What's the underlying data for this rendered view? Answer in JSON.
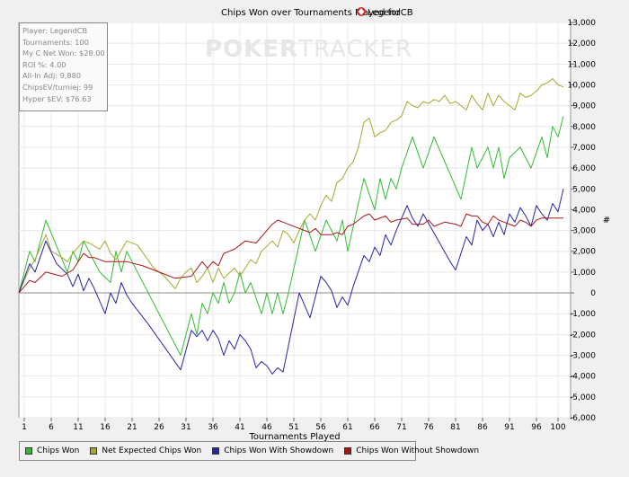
{
  "chart_data": {
    "type": "line",
    "title": "Chips Won over Tournaments Played for",
    "player_name": "LegendCB",
    "xlabel": "Tournaments Played",
    "ylabel": "#",
    "xlim": [
      0,
      100
    ],
    "ylim": [
      -6000,
      13000
    ],
    "x_ticks": [
      1,
      6,
      11,
      16,
      21,
      26,
      31,
      36,
      41,
      46,
      51,
      56,
      61,
      66,
      71,
      76,
      81,
      86,
      91,
      96,
      100
    ],
    "y_ticks": [
      -6000,
      -5000,
      -4000,
      -3000,
      -2000,
      -1000,
      0,
      1000,
      2000,
      3000,
      4000,
      5000,
      6000,
      7000,
      8000,
      9000,
      10000,
      11000,
      12000,
      13000
    ],
    "y_tick_labels": [
      "-6,000",
      "-5,000",
      "-4,000",
      "-3,000",
      "-2,000",
      "-1,000",
      "0",
      "1,000",
      "2,000",
      "3,000",
      "4,000",
      "5,000",
      "6,000",
      "7,000",
      "8,000",
      "9,000",
      "10,000",
      "11,000",
      "12,000",
      "13,000"
    ],
    "series": [
      {
        "name": "Chips Won",
        "color": "#33bb33",
        "points": [
          [
            0,
            0
          ],
          [
            2,
            2000
          ],
          [
            3,
            1500
          ],
          [
            5,
            3500
          ],
          [
            9,
            1000
          ],
          [
            10,
            2000
          ],
          [
            11,
            1500
          ],
          [
            12,
            2500
          ],
          [
            15,
            1000
          ],
          [
            17,
            500
          ],
          [
            18,
            2000
          ],
          [
            19,
            1000
          ],
          [
            20,
            2000
          ],
          [
            30,
            -3000
          ],
          [
            32,
            -1000
          ],
          [
            33,
            -2000
          ],
          [
            34,
            -500
          ],
          [
            35,
            -1000
          ],
          [
            36,
            0
          ],
          [
            37,
            -500
          ],
          [
            38,
            500
          ],
          [
            39,
            -500
          ],
          [
            40,
            0
          ],
          [
            41,
            1000
          ],
          [
            42,
            0
          ],
          [
            43,
            500
          ],
          [
            45,
            -1000
          ],
          [
            46,
            0
          ],
          [
            47,
            -1000
          ],
          [
            48,
            0
          ],
          [
            49,
            -1000
          ],
          [
            50,
            0
          ],
          [
            53,
            3500
          ],
          [
            55,
            2000
          ],
          [
            57,
            3500
          ],
          [
            58,
            3000
          ],
          [
            59,
            2500
          ],
          [
            60,
            3500
          ],
          [
            61,
            2000
          ],
          [
            64,
            5500
          ],
          [
            66,
            4000
          ],
          [
            67,
            5500
          ],
          [
            68,
            4500
          ],
          [
            69,
            5500
          ],
          [
            70,
            5000
          ],
          [
            71,
            6000
          ],
          [
            73,
            7500
          ],
          [
            75,
            6000
          ],
          [
            77,
            7500
          ],
          [
            82,
            4500
          ],
          [
            84,
            7000
          ],
          [
            85,
            6000
          ],
          [
            87,
            7000
          ],
          [
            88,
            6000
          ],
          [
            89,
            7000
          ],
          [
            90,
            5500
          ],
          [
            91,
            6500
          ],
          [
            93,
            7000
          ],
          [
            95,
            6000
          ],
          [
            97,
            7500
          ],
          [
            98,
            6500
          ],
          [
            99,
            8000
          ],
          [
            100,
            7500
          ],
          [
            101,
            8500
          ]
        ]
      },
      {
        "name": "Net Expected Chips Won",
        "color": "#a8a830",
        "points": [
          [
            0,
            0
          ],
          [
            2,
            1200
          ],
          [
            3,
            1600
          ],
          [
            5,
            2800
          ],
          [
            6,
            2000
          ],
          [
            8,
            1700
          ],
          [
            9,
            1500
          ],
          [
            10,
            1900
          ],
          [
            12,
            2500
          ],
          [
            13,
            2400
          ],
          [
            15,
            2100
          ],
          [
            16,
            2500
          ],
          [
            17,
            1900
          ],
          [
            18,
            1600
          ],
          [
            20,
            2500
          ],
          [
            22,
            2300
          ],
          [
            25,
            1200
          ],
          [
            27,
            800
          ],
          [
            29,
            200
          ],
          [
            30,
            700
          ],
          [
            31,
            1000
          ],
          [
            32,
            1200
          ],
          [
            33,
            500
          ],
          [
            34,
            800
          ],
          [
            35,
            1200
          ],
          [
            36,
            500
          ],
          [
            37,
            1200
          ],
          [
            38,
            700
          ],
          [
            40,
            1200
          ],
          [
            41,
            800
          ],
          [
            43,
            1600
          ],
          [
            44,
            1400
          ],
          [
            45,
            2000
          ],
          [
            47,
            2500
          ],
          [
            48,
            2200
          ],
          [
            49,
            3000
          ],
          [
            50,
            2800
          ],
          [
            51,
            2400
          ],
          [
            52,
            3000
          ],
          [
            53,
            3500
          ],
          [
            54,
            3800
          ],
          [
            55,
            3500
          ],
          [
            56,
            4200
          ],
          [
            57,
            4700
          ],
          [
            58,
            4400
          ],
          [
            59,
            5300
          ],
          [
            60,
            5500
          ],
          [
            61,
            6000
          ],
          [
            62,
            6300
          ],
          [
            63,
            7000
          ],
          [
            64,
            8200
          ],
          [
            65,
            8400
          ],
          [
            66,
            7500
          ],
          [
            67,
            7700
          ],
          [
            68,
            7800
          ],
          [
            69,
            8200
          ],
          [
            70,
            8300
          ],
          [
            71,
            8500
          ],
          [
            72,
            9200
          ],
          [
            73,
            9000
          ],
          [
            74,
            8900
          ],
          [
            75,
            9200
          ],
          [
            76,
            9100
          ],
          [
            77,
            9300
          ],
          [
            78,
            9200
          ],
          [
            79,
            9500
          ],
          [
            80,
            9100
          ],
          [
            81,
            9200
          ],
          [
            82,
            9000
          ],
          [
            83,
            8800
          ],
          [
            84,
            9500
          ],
          [
            85,
            9100
          ],
          [
            86,
            8800
          ],
          [
            87,
            9600
          ],
          [
            88,
            9000
          ],
          [
            89,
            9500
          ],
          [
            90,
            9200
          ],
          [
            91,
            9000
          ],
          [
            92,
            8800
          ],
          [
            93,
            9600
          ],
          [
            94,
            9400
          ],
          [
            95,
            9500
          ],
          [
            96,
            9700
          ],
          [
            97,
            10000
          ],
          [
            98,
            10100
          ],
          [
            99,
            10300
          ],
          [
            100,
            10000
          ],
          [
            101,
            9900
          ]
        ]
      },
      {
        "name": "Chips Won With Showdown",
        "color": "#2525a8",
        "points": [
          [
            0,
            0
          ],
          [
            2,
            1400
          ],
          [
            3,
            1000
          ],
          [
            5,
            2500
          ],
          [
            7,
            1400
          ],
          [
            9,
            900
          ],
          [
            10,
            300
          ],
          [
            11,
            900
          ],
          [
            12,
            100
          ],
          [
            13,
            700
          ],
          [
            14,
            200
          ],
          [
            16,
            -1000
          ],
          [
            17,
            0
          ],
          [
            18,
            -500
          ],
          [
            19,
            500
          ],
          [
            20,
            -100
          ],
          [
            21,
            -500
          ],
          [
            24,
            -1500
          ],
          [
            30,
            -3700
          ],
          [
            32,
            -1800
          ],
          [
            33,
            -2100
          ],
          [
            34,
            -1800
          ],
          [
            35,
            -2300
          ],
          [
            36,
            -1800
          ],
          [
            37,
            -2200
          ],
          [
            38,
            -3000
          ],
          [
            39,
            -2300
          ],
          [
            40,
            -2700
          ],
          [
            41,
            -2000
          ],
          [
            42,
            -2300
          ],
          [
            43,
            -2700
          ],
          [
            44,
            -3600
          ],
          [
            45,
            -3300
          ],
          [
            46,
            -3500
          ],
          [
            47,
            -3900
          ],
          [
            48,
            -3600
          ],
          [
            49,
            -3800
          ],
          [
            52,
            0
          ],
          [
            53,
            -600
          ],
          [
            54,
            -1200
          ],
          [
            56,
            800
          ],
          [
            57,
            500
          ],
          [
            58,
            100
          ],
          [
            59,
            -700
          ],
          [
            60,
            -200
          ],
          [
            61,
            -600
          ],
          [
            62,
            300
          ],
          [
            64,
            1800
          ],
          [
            65,
            1500
          ],
          [
            66,
            2200
          ],
          [
            67,
            1800
          ],
          [
            68,
            2800
          ],
          [
            69,
            2300
          ],
          [
            70,
            3000
          ],
          [
            72,
            4200
          ],
          [
            73,
            3600
          ],
          [
            74,
            3200
          ],
          [
            75,
            3800
          ],
          [
            80,
            1500
          ],
          [
            81,
            1100
          ],
          [
            83,
            2700
          ],
          [
            84,
            2300
          ],
          [
            85,
            3500
          ],
          [
            86,
            3000
          ],
          [
            87,
            3300
          ],
          [
            88,
            2700
          ],
          [
            89,
            3400
          ],
          [
            90,
            2800
          ],
          [
            91,
            3800
          ],
          [
            92,
            3400
          ],
          [
            93,
            4100
          ],
          [
            94,
            3700
          ],
          [
            95,
            3200
          ],
          [
            96,
            4200
          ],
          [
            97,
            3800
          ],
          [
            98,
            3500
          ],
          [
            99,
            4300
          ],
          [
            100,
            3900
          ],
          [
            101,
            5000
          ]
        ]
      },
      {
        "name": "Chips Won Without Showdown",
        "color": "#aa1515",
        "points": [
          [
            0,
            0
          ],
          [
            2,
            600
          ],
          [
            3,
            500
          ],
          [
            5,
            1000
          ],
          [
            8,
            800
          ],
          [
            10,
            1100
          ],
          [
            12,
            1900
          ],
          [
            13,
            1700
          ],
          [
            14,
            1700
          ],
          [
            16,
            1500
          ],
          [
            17,
            1500
          ],
          [
            20,
            1500
          ],
          [
            23,
            1300
          ],
          [
            26,
            1000
          ],
          [
            29,
            700
          ],
          [
            32,
            800
          ],
          [
            34,
            1500
          ],
          [
            35,
            1200
          ],
          [
            36,
            1500
          ],
          [
            37,
            1300
          ],
          [
            38,
            1900
          ],
          [
            40,
            2100
          ],
          [
            42,
            2500
          ],
          [
            44,
            2400
          ],
          [
            46,
            3000
          ],
          [
            47,
            3300
          ],
          [
            48,
            3500
          ],
          [
            49,
            3400
          ],
          [
            52,
            3100
          ],
          [
            54,
            2900
          ],
          [
            55,
            3100
          ],
          [
            56,
            2800
          ],
          [
            58,
            2800
          ],
          [
            59,
            2900
          ],
          [
            60,
            2800
          ],
          [
            61,
            3200
          ],
          [
            62,
            3300
          ],
          [
            64,
            3700
          ],
          [
            65,
            3800
          ],
          [
            66,
            3500
          ],
          [
            68,
            3700
          ],
          [
            69,
            3400
          ],
          [
            70,
            3500
          ],
          [
            72,
            3600
          ],
          [
            73,
            3300
          ],
          [
            75,
            3300
          ],
          [
            76,
            3500
          ],
          [
            77,
            3200
          ],
          [
            79,
            3400
          ],
          [
            81,
            3300
          ],
          [
            82,
            3200
          ],
          [
            83,
            3800
          ],
          [
            84,
            3700
          ],
          [
            85,
            3700
          ],
          [
            86,
            3400
          ],
          [
            87,
            3300
          ],
          [
            88,
            3700
          ],
          [
            89,
            3500
          ],
          [
            90,
            3400
          ],
          [
            91,
            3300
          ],
          [
            92,
            3200
          ],
          [
            93,
            3500
          ],
          [
            94,
            3400
          ],
          [
            95,
            3200
          ],
          [
            96,
            3500
          ],
          [
            97,
            3600
          ],
          [
            98,
            3600
          ],
          [
            99,
            3600
          ],
          [
            101,
            3600
          ]
        ]
      }
    ]
  },
  "stats": {
    "player": "Player: LegendCB",
    "tournaments": "Tournaments: 100",
    "net_won": "My C Net Won: $28.00",
    "roi": "ROI %: 4.00",
    "allin_adj": "All-In Adj: 9,880",
    "chips_ev": "ChipsEV/turniej: 99",
    "hyper_sev": "Hyper $EV: $76.63"
  },
  "watermark": {
    "brand_bold": "POKER",
    "brand_light": "TRACKER"
  },
  "legend": {
    "items": [
      "Chips Won",
      "Net Expected Chips Won",
      "Chips Won With Showdown",
      "Chips Won Without Showdown"
    ]
  }
}
